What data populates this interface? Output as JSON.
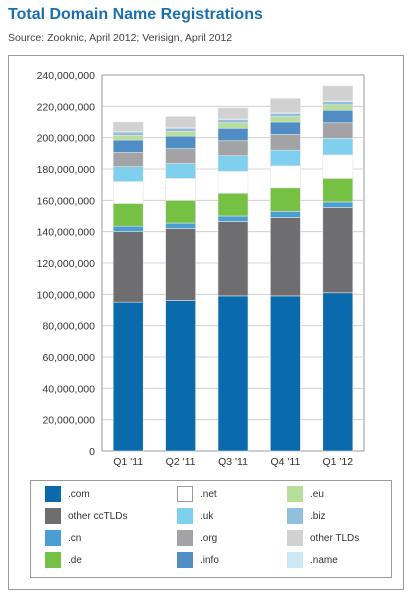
{
  "header": {
    "title": "Total Domain Name Registrations",
    "subtitle": "Source: Zooknic, April 2012; Verisign, April 2012"
  },
  "chart_data": {
    "type": "bar",
    "stacked": true,
    "categories": [
      "Q1 '11",
      "Q2 '11",
      "Q3 '11",
      "Q4 '11",
      "Q1 '12"
    ],
    "ylim": [
      0,
      240000000
    ],
    "yticks": [
      "0",
      "20,000,000",
      "40,000,000",
      "60,000,000",
      "80,000,000",
      "100,000,000",
      "120,000,000",
      "140,000,000",
      "160,000,000",
      "180,000,000",
      "200,000,000",
      "220,000,000",
      "240,000,000"
    ],
    "grid": true,
    "legend_position": "bottom",
    "series": [
      {
        "name": ".com",
        "color": "#0a6aab",
        "values": [
          95000000,
          96000000,
          99000000,
          99000000,
          101000000
        ]
      },
      {
        "name": "other ccTLDs",
        "color": "#6e6e70",
        "values": [
          45000000,
          46000000,
          47500000,
          50000000,
          54500000
        ]
      },
      {
        "name": ".cn",
        "color": "#4a9fd2",
        "values": [
          3500000,
          3500000,
          3500000,
          4000000,
          3500000
        ]
      },
      {
        "name": ".de",
        "color": "#76c043",
        "values": [
          14500000,
          14500000,
          14500000,
          15000000,
          15000000
        ]
      },
      {
        "name": ".net",
        "color": "#ffffff",
        "values": [
          14000000,
          14000000,
          14000000,
          14000000,
          15000000
        ]
      },
      {
        "name": ".uk",
        "color": "#7fd0ee",
        "values": [
          9500000,
          9500000,
          10000000,
          10000000,
          10500000
        ]
      },
      {
        "name": ".org",
        "color": "#a3a3a5",
        "values": [
          9000000,
          9500000,
          9500000,
          10000000,
          10000000
        ]
      },
      {
        "name": ".info",
        "color": "#4f8dc4",
        "values": [
          8000000,
          8000000,
          8000000,
          8000000,
          8000000
        ]
      },
      {
        "name": ".eu",
        "color": "#b7de9a",
        "values": [
          3000000,
          3000000,
          3500000,
          3500000,
          3500000
        ]
      },
      {
        "name": ".biz",
        "color": "#93bfdf",
        "values": [
          2000000,
          2000000,
          2000000,
          2000000,
          2000000
        ]
      },
      {
        "name": ".name",
        "color": "#c9e9f7",
        "values": [
          500000,
          500000,
          500000,
          500000,
          500000
        ]
      },
      {
        "name": "other TLDs",
        "color": "#d1d1d1",
        "values": [
          6000000,
          7000000,
          7000000,
          9000000,
          9500000
        ]
      }
    ]
  },
  "legend": {
    "columns": [
      [
        ".com",
        "other ccTLDs",
        ".cn",
        ".de"
      ],
      [
        ".net",
        ".uk",
        ".org",
        ".info"
      ],
      [
        ".eu",
        ".biz",
        "other TLDs",
        ".name"
      ]
    ]
  }
}
